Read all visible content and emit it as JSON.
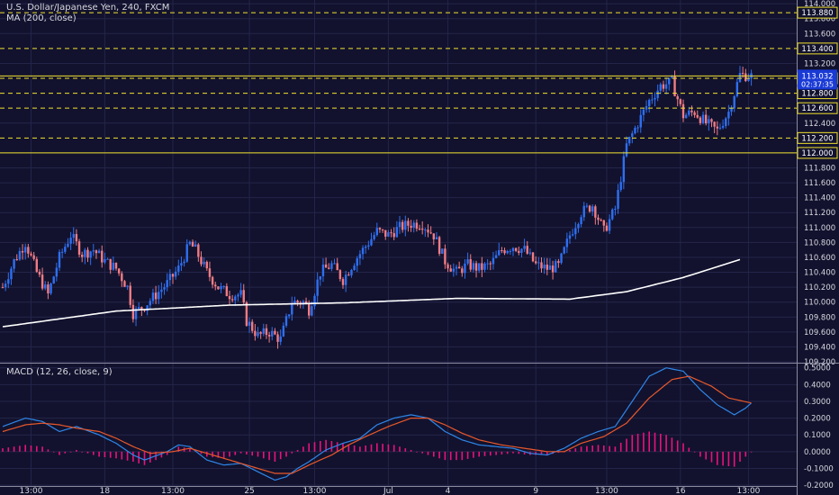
{
  "header": {
    "title": "U.S. Dollar/Japanese Yen, 240, FXCM",
    "indicator": "MA (200, close)"
  },
  "macd_header": "MACD (12, 26, close, 9)",
  "colors": {
    "background": "#12122e",
    "up_candle": "#2f6ff0",
    "down_candle": "#f07c84",
    "ma_line": "#ffffff",
    "level_line": "#f2e22e",
    "macd_line": "#2e86e8",
    "signal_line": "#e8582a",
    "histogram": "#e8127c",
    "price_tag": "#1a3ad6"
  },
  "chart_data": [
    {
      "type": "candlestick",
      "title": "U.S. Dollar/Japanese Yen, 240, FXCM",
      "x_tick_labels": [
        "13:00",
        "18",
        "13:00",
        "25",
        "13:00",
        "Jul",
        "4",
        "9",
        "13:00",
        "16",
        "13:00"
      ],
      "y_tick_labels": [
        "114.000",
        "113.800",
        "113.600",
        "113.200",
        "112.400",
        "112.000",
        "111.800",
        "111.600",
        "111.400",
        "111.200",
        "111.000",
        "110.800",
        "110.600",
        "110.400",
        "110.200",
        "110.000",
        "109.800",
        "109.600",
        "109.400",
        "109.200"
      ],
      "ylim": [
        109.2,
        114.05
      ],
      "horizontal_levels": [
        {
          "price": 113.88,
          "label": "113.880",
          "style": "dashed"
        },
        {
          "price": 113.4,
          "label": "113.400",
          "style": "dashed"
        },
        {
          "price": 113.0,
          "label": "113.000",
          "style": "dashed"
        },
        {
          "price": 112.8,
          "label": "112.800",
          "style": "dashed"
        },
        {
          "price": 112.2,
          "label": "112.200",
          "style": "dashed"
        },
        {
          "price": 112.0,
          "label": "112.000",
          "style": "solid"
        },
        {
          "price": 113.032,
          "label": "113.032",
          "style": "solid"
        }
      ],
      "last_price": {
        "value": "113.032",
        "countdown": "02:37:35"
      },
      "partial_level_label": "112.600",
      "ma200_anchors": [
        [
          0,
          109.67
        ],
        [
          40,
          109.88
        ],
        [
          80,
          109.96
        ],
        [
          120,
          109.99
        ],
        [
          160,
          110.05
        ],
        [
          200,
          110.04
        ],
        [
          220,
          110.14
        ],
        [
          240,
          110.33
        ],
        [
          260,
          110.57
        ]
      ],
      "ohlc_anchors": [
        [
          0,
          110.2
        ],
        [
          4,
          110.55
        ],
        [
          8,
          110.8
        ],
        [
          12,
          110.4
        ],
        [
          16,
          110.1
        ],
        [
          20,
          110.6
        ],
        [
          24,
          110.9
        ],
        [
          28,
          110.65
        ],
        [
          32,
          110.7
        ],
        [
          36,
          110.55
        ],
        [
          40,
          110.45
        ],
        [
          44,
          110.2
        ],
        [
          46,
          109.85
        ],
        [
          50,
          109.95
        ],
        [
          54,
          110.1
        ],
        [
          58,
          110.25
        ],
        [
          62,
          110.45
        ],
        [
          66,
          110.78
        ],
        [
          68,
          110.7
        ],
        [
          72,
          110.4
        ],
        [
          76,
          110.2
        ],
        [
          80,
          110.1
        ],
        [
          84,
          110.1
        ],
        [
          86,
          109.75
        ],
        [
          90,
          109.55
        ],
        [
          94,
          109.6
        ],
        [
          98,
          109.5
        ],
        [
          102,
          110.0
        ],
        [
          106,
          110.0
        ],
        [
          108,
          109.9
        ],
        [
          112,
          110.4
        ],
        [
          116,
          110.5
        ],
        [
          120,
          110.3
        ],
        [
          124,
          110.55
        ],
        [
          128,
          110.75
        ],
        [
          132,
          110.95
        ],
        [
          136,
          110.9
        ],
        [
          140,
          111.0
        ],
        [
          144,
          111.05
        ],
        [
          148,
          111.05
        ],
        [
          152,
          110.9
        ],
        [
          156,
          110.55
        ],
        [
          160,
          110.4
        ],
        [
          164,
          110.5
        ],
        [
          168,
          110.45
        ],
        [
          172,
          110.5
        ],
        [
          176,
          110.7
        ],
        [
          180,
          110.75
        ],
        [
          184,
          110.7
        ],
        [
          188,
          110.5
        ],
        [
          192,
          110.45
        ],
        [
          196,
          110.48
        ],
        [
          200,
          110.9
        ],
        [
          204,
          111.2
        ],
        [
          208,
          111.3
        ],
        [
          212,
          110.95
        ],
        [
          216,
          111.25
        ],
        [
          220,
          112.1
        ],
        [
          224,
          112.4
        ],
        [
          228,
          112.7
        ],
        [
          232,
          112.9
        ],
        [
          236,
          112.95
        ],
        [
          240,
          112.5
        ],
        [
          244,
          112.55
        ],
        [
          248,
          112.4
        ],
        [
          252,
          112.3
        ],
        [
          256,
          112.55
        ],
        [
          260,
          113.05
        ],
        [
          264,
          113.03
        ]
      ]
    },
    {
      "type": "line",
      "title": "MACD (12, 26, close, 9)",
      "y_tick_labels": [
        "0.5000",
        "0.4000",
        "0.3000",
        "0.2000",
        "0.1000",
        "0.0000",
        "-0.1000",
        "-0.2000"
      ],
      "ylim": [
        -0.205,
        0.52
      ],
      "series": [
        {
          "name": "MACD",
          "anchors": [
            [
              0,
              0.15
            ],
            [
              8,
              0.2
            ],
            [
              14,
              0.18
            ],
            [
              20,
              0.12
            ],
            [
              26,
              0.15
            ],
            [
              34,
              0.1
            ],
            [
              40,
              0.05
            ],
            [
              46,
              -0.02
            ],
            [
              50,
              -0.05
            ],
            [
              58,
              0.0
            ],
            [
              62,
              0.04
            ],
            [
              66,
              0.03
            ],
            [
              72,
              -0.05
            ],
            [
              78,
              -0.08
            ],
            [
              84,
              -0.07
            ],
            [
              90,
              -0.12
            ],
            [
              96,
              -0.17
            ],
            [
              100,
              -0.15
            ],
            [
              104,
              -0.1
            ],
            [
              108,
              -0.06
            ],
            [
              114,
              0.01
            ],
            [
              120,
              0.05
            ],
            [
              126,
              0.08
            ],
            [
              132,
              0.16
            ],
            [
              138,
              0.2
            ],
            [
              144,
              0.22
            ],
            [
              150,
              0.2
            ],
            [
              156,
              0.12
            ],
            [
              162,
              0.07
            ],
            [
              168,
              0.04
            ],
            [
              174,
              0.03
            ],
            [
              180,
              0.02
            ],
            [
              186,
              -0.01
            ],
            [
              192,
              -0.02
            ],
            [
              198,
              0.02
            ],
            [
              204,
              0.08
            ],
            [
              210,
              0.12
            ],
            [
              216,
              0.15
            ],
            [
              222,
              0.3
            ],
            [
              228,
              0.45
            ],
            [
              234,
              0.5
            ],
            [
              240,
              0.48
            ],
            [
              246,
              0.37
            ],
            [
              252,
              0.28
            ],
            [
              258,
              0.22
            ],
            [
              262,
              0.26
            ],
            [
              264,
              0.29
            ]
          ]
        },
        {
          "name": "Signal",
          "anchors": [
            [
              0,
              0.12
            ],
            [
              8,
              0.16
            ],
            [
              14,
              0.17
            ],
            [
              20,
              0.16
            ],
            [
              26,
              0.14
            ],
            [
              34,
              0.12
            ],
            [
              40,
              0.08
            ],
            [
              46,
              0.03
            ],
            [
              52,
              -0.01
            ],
            [
              60,
              0.0
            ],
            [
              66,
              0.02
            ],
            [
              72,
              -0.01
            ],
            [
              80,
              -0.05
            ],
            [
              88,
              -0.09
            ],
            [
              96,
              -0.13
            ],
            [
              102,
              -0.13
            ],
            [
              108,
              -0.08
            ],
            [
              116,
              -0.02
            ],
            [
              122,
              0.04
            ],
            [
              128,
              0.09
            ],
            [
              136,
              0.15
            ],
            [
              144,
              0.2
            ],
            [
              150,
              0.2
            ],
            [
              156,
              0.16
            ],
            [
              162,
              0.11
            ],
            [
              168,
              0.07
            ],
            [
              176,
              0.04
            ],
            [
              184,
              0.02
            ],
            [
              192,
              0.0
            ],
            [
              198,
              0.0
            ],
            [
              204,
              0.05
            ],
            [
              212,
              0.09
            ],
            [
              220,
              0.17
            ],
            [
              228,
              0.32
            ],
            [
              236,
              0.43
            ],
            [
              242,
              0.45
            ],
            [
              250,
              0.39
            ],
            [
              256,
              0.32
            ],
            [
              264,
              0.29
            ]
          ]
        }
      ],
      "histogram_anchors": [
        [
          0,
          0.02
        ],
        [
          8,
          0.04
        ],
        [
          14,
          0.03
        ],
        [
          20,
          -0.02
        ],
        [
          26,
          0.01
        ],
        [
          34,
          -0.03
        ],
        [
          40,
          -0.04
        ],
        [
          46,
          -0.06
        ],
        [
          50,
          -0.08
        ],
        [
          58,
          -0.02
        ],
        [
          62,
          0.03
        ],
        [
          66,
          0.02
        ],
        [
          72,
          -0.03
        ],
        [
          78,
          -0.04
        ],
        [
          84,
          -0.01
        ],
        [
          90,
          -0.03
        ],
        [
          96,
          -0.06
        ],
        [
          100,
          -0.03
        ],
        [
          104,
          0.01
        ],
        [
          108,
          0.05
        ],
        [
          114,
          0.07
        ],
        [
          120,
          0.05
        ],
        [
          126,
          0.03
        ],
        [
          132,
          0.05
        ],
        [
          138,
          0.04
        ],
        [
          144,
          0.01
        ],
        [
          150,
          -0.02
        ],
        [
          156,
          -0.05
        ],
        [
          162,
          -0.05
        ],
        [
          168,
          -0.03
        ],
        [
          174,
          -0.02
        ],
        [
          180,
          -0.01
        ],
        [
          186,
          -0.02
        ],
        [
          192,
          -0.02
        ],
        [
          198,
          0.0
        ],
        [
          204,
          0.03
        ],
        [
          210,
          0.04
        ],
        [
          216,
          0.03
        ],
        [
          222,
          0.1
        ],
        [
          228,
          0.12
        ],
        [
          234,
          0.1
        ],
        [
          240,
          0.05
        ],
        [
          246,
          -0.03
        ],
        [
          252,
          -0.08
        ],
        [
          258,
          -0.09
        ],
        [
          262,
          -0.03
        ],
        [
          264,
          0.0
        ]
      ]
    }
  ]
}
